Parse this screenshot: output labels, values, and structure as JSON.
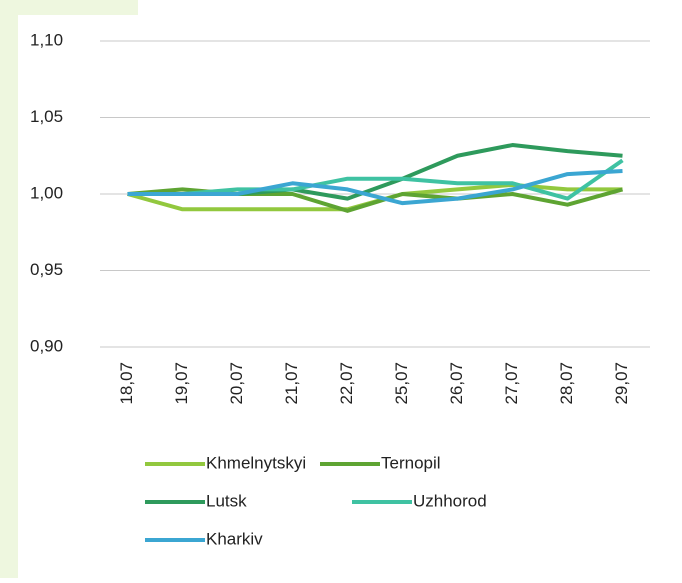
{
  "chart_data": {
    "type": "line",
    "categories": [
      "18,07",
      "19,07",
      "20,07",
      "21,07",
      "22,07",
      "25,07",
      "26,07",
      "27,07",
      "28,07",
      "29,07"
    ],
    "series": [
      {
        "name": "Khmelnytskyi",
        "color": "#92c83e",
        "values": [
          1.0,
          0.99,
          0.99,
          0.99,
          0.99,
          1.0,
          1.003,
          1.006,
          1.003,
          1.003
        ]
      },
      {
        "name": "Ternopil",
        "color": "#5ea432",
        "values": [
          1.0,
          1.003,
          1.0,
          1.0,
          0.989,
          1.0,
          0.997,
          1.0,
          0.993,
          1.003
        ]
      },
      {
        "name": "Lutsk",
        "color": "#2e9a5c",
        "values": [
          1.0,
          1.0,
          1.0,
          1.003,
          0.997,
          1.01,
          1.025,
          1.032,
          1.028,
          1.025
        ]
      },
      {
        "name": "Uzhhorod",
        "color": "#3fc2a2",
        "values": [
          1.0,
          1.0,
          1.003,
          1.003,
          1.01,
          1.01,
          1.007,
          1.007,
          0.997,
          1.022
        ]
      },
      {
        "name": "Kharkiv",
        "color": "#3ba6d2",
        "values": [
          1.0,
          1.0,
          1.0,
          1.007,
          1.003,
          0.994,
          0.997,
          1.003,
          1.013,
          1.015
        ]
      }
    ],
    "ylim": [
      0.9,
      1.1
    ],
    "yticks": [
      {
        "value": 0.9,
        "label": "0,90"
      },
      {
        "value": 0.95,
        "label": "0,95"
      },
      {
        "value": 1.0,
        "label": "1,00"
      },
      {
        "value": 1.05,
        "label": "1,05"
      },
      {
        "value": 1.1,
        "label": "1,10"
      }
    ],
    "grid": true,
    "legend": "bottom"
  }
}
